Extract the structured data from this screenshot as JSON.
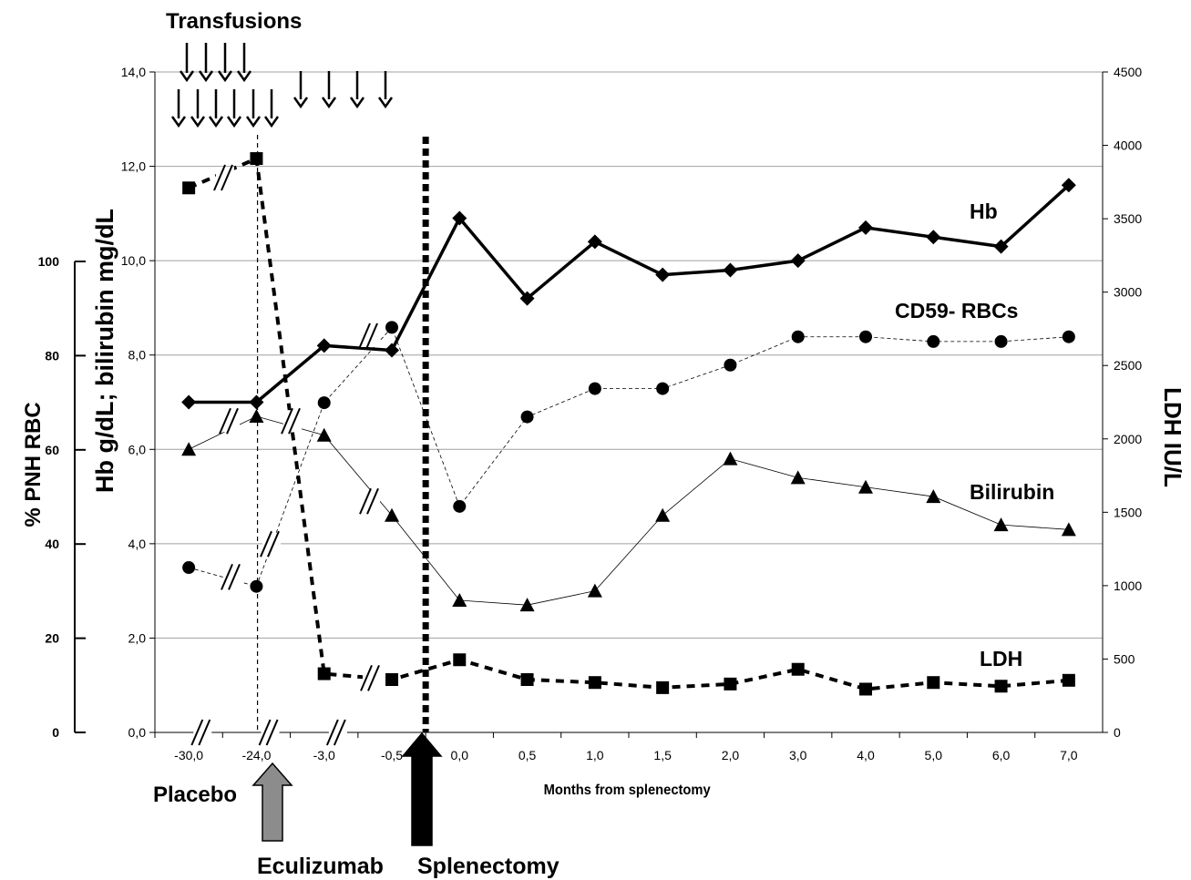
{
  "chart_data": {
    "type": "line",
    "xlabel": "Months from splenectomy",
    "categories": [
      "-30,0",
      "-24,0",
      "-3,0",
      "-0,5",
      "0,0",
      "0,5",
      "1,0",
      "1,5",
      "2,0",
      "3,0",
      "4,0",
      "5,0",
      "6,0",
      "7,0"
    ],
    "x": [
      -30.0,
      -24.0,
      -3.0,
      -0.5,
      0.0,
      0.5,
      1.0,
      1.5,
      2.0,
      3.0,
      4.0,
      5.0,
      6.0,
      7.0
    ],
    "axes": {
      "left_outer": {
        "label": "% PNH RBC",
        "range": [
          0,
          100
        ],
        "ticks": [
          "0",
          "20",
          "40",
          "60",
          "80",
          "100"
        ]
      },
      "left_inner": {
        "label": "Hb g/dL; bilirubin mg/dL",
        "range": [
          0,
          14
        ],
        "ticks": [
          "0,0",
          "2,0",
          "4,0",
          "6,0",
          "8,0",
          "10,0",
          "12,0",
          "14,0"
        ]
      },
      "right": {
        "label": "LDH IU/L",
        "range": [
          0,
          4500
        ],
        "ticks": [
          "0",
          "500",
          "1000",
          "1500",
          "2000",
          "2500",
          "3000",
          "3500",
          "4000",
          "4500"
        ]
      }
    },
    "grid": true,
    "series": [
      {
        "name": "Hb",
        "axis": "left_inner",
        "marker": "diamond",
        "line": "solid-thick",
        "values": [
          7.0,
          7.0,
          8.2,
          8.1,
          10.9,
          9.2,
          10.4,
          9.7,
          9.8,
          10.0,
          10.7,
          10.5,
          10.3,
          11.6
        ]
      },
      {
        "name": "CD59- RBCs",
        "axis": "left_outer",
        "marker": "circle",
        "line": "dashed-thin",
        "values": [
          35,
          31,
          70,
          86,
          48,
          67,
          73,
          73,
          78,
          84,
          84,
          83,
          83,
          84
        ]
      },
      {
        "name": "Bilirubin",
        "axis": "left_inner",
        "marker": "triangle",
        "line": "solid-thin",
        "values": [
          6.0,
          6.7,
          6.3,
          4.6,
          2.8,
          2.7,
          3.0,
          4.6,
          5.8,
          5.4,
          5.2,
          5.0,
          4.4,
          4.3
        ]
      },
      {
        "name": "LDH",
        "axis": "right",
        "marker": "square",
        "line": "dashed-thick",
        "values": [
          3710,
          3910,
          400,
          360,
          495,
          360,
          340,
          305,
          330,
          430,
          295,
          340,
          315,
          355
        ]
      }
    ],
    "annotations": {
      "transfusions": "Transfusions",
      "placebo": "Placebo",
      "eculizumab": "Eculizumab",
      "splenectomy": "Splenectomy"
    }
  }
}
